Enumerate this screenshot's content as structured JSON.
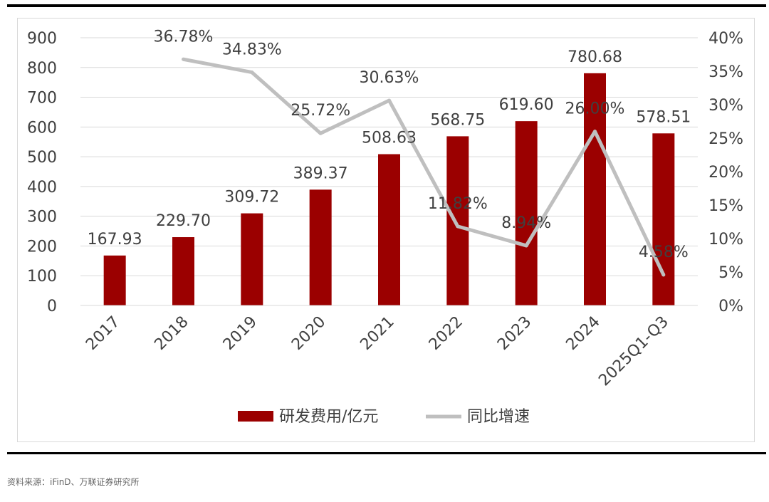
{
  "source_note": "资料来源：iFinD、万联证券研究所",
  "chart_data": {
    "type": "bar",
    "categories": [
      "2017",
      "2018",
      "2019",
      "2020",
      "2021",
      "2022",
      "2023",
      "2024",
      "2025Q1-Q3"
    ],
    "series": [
      {
        "name": "研发费用/亿元",
        "type": "bar",
        "axis": "left",
        "color": "#9b0000",
        "values": [
          167.93,
          229.7,
          309.72,
          389.37,
          508.63,
          568.75,
          619.6,
          780.68,
          578.51
        ],
        "labels": [
          "167.93",
          "229.70",
          "309.72",
          "389.37",
          "508.63",
          "568.75",
          "619.60",
          "780.68",
          "578.51"
        ]
      },
      {
        "name": "同比增速",
        "type": "line",
        "axis": "right",
        "color": "#bfbfbf",
        "values": [
          null,
          36.78,
          34.83,
          25.72,
          30.63,
          11.82,
          8.94,
          26.0,
          4.58
        ],
        "labels": [
          "",
          "36.78%",
          "34.83%",
          "25.72%",
          "30.63%",
          "11.82%",
          "8.94%",
          "26.00%",
          "4.58%"
        ]
      }
    ],
    "ylim": [
      0,
      900
    ],
    "yticks": [
      "0",
      "100",
      "200",
      "300",
      "400",
      "500",
      "600",
      "700",
      "800",
      "900"
    ],
    "y2lim": [
      0,
      40
    ],
    "y2ticks": [
      "0%",
      "5%",
      "10%",
      "15%",
      "20%",
      "25%",
      "30%",
      "35%",
      "40%"
    ],
    "grid": true,
    "legend_position": "bottom"
  }
}
